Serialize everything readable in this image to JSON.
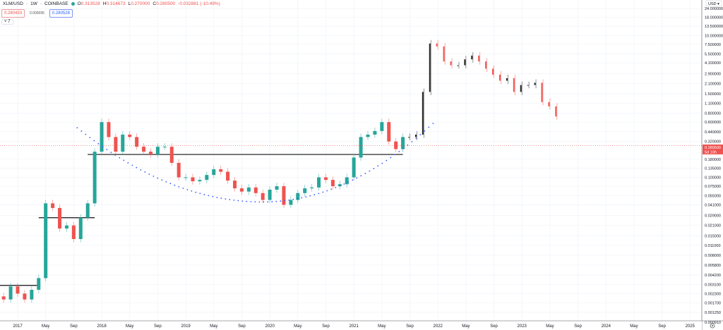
{
  "header": {
    "symbol": "XLM/USD",
    "interval": "1W",
    "exchange": "COINBASE",
    "open_label": "O",
    "open": "0.313528",
    "high_label": "H",
    "high": "0.314673",
    "low_label": "L",
    "low": "0.270000",
    "close_label": "C",
    "close": "0.280500",
    "change": "-0.032881 (-10.49%)",
    "sell_price": "0.280433",
    "spread": "0.000095",
    "buy_price": "0.280528",
    "indicators_toggle": "˅ 7"
  },
  "price_axis": {
    "currency": "USD ▾",
    "labels": [
      "24.000000",
      "18.000000",
      "13.500000",
      "10.000000",
      "7.500000",
      "5.500000",
      "4.100000",
      "2.900000",
      "2.100000",
      "1.500000",
      "1.100000",
      "0.800000",
      "0.600000",
      "0.440000",
      "0.320000",
      "0.180000",
      "0.135000",
      "0.100000",
      "0.075000",
      "0.055000",
      "0.041000",
      "0.029000",
      "0.021000",
      "0.015000",
      "0.011000",
      "0.008000",
      "0.005800",
      "0.004200",
      "0.003100",
      "0.002300",
      "0.001700",
      "0.001250",
      "0.000910"
    ],
    "current_price": "0.280500",
    "countdown": "5d 10h",
    "settings_icon": "gear-icon"
  },
  "time_axis": {
    "labels": [
      "2017",
      "May",
      "Sep",
      "2018",
      "May",
      "Sep",
      "2019",
      "May",
      "Sep",
      "2020",
      "May",
      "Sep",
      "2021",
      "May",
      "Sep",
      "2022",
      "May",
      "Sep",
      "2023",
      "May",
      "Sep",
      "2024",
      "May",
      "Sep",
      "2025"
    ]
  },
  "colors": {
    "up": "#26a69a",
    "down": "#ef5350",
    "projection_rise": "#222222",
    "projection_fall": "#ef5350",
    "arc": "#3d5afe",
    "level": "#111111"
  },
  "chart_data": {
    "type": "candlestick",
    "scale": "log",
    "ylim": [
      0.00091,
      24
    ],
    "start_month": "2016-10",
    "monthly_close": [
      0.0021,
      0.0019,
      0.0029,
      0.0023,
      0.0019,
      0.0026,
      0.0038,
      0.043,
      0.037,
      0.019,
      0.021,
      0.0135,
      0.027,
      0.043,
      0.23,
      0.6,
      0.37,
      0.23,
      0.4,
      0.37,
      0.27,
      0.23,
      0.21,
      0.27,
      0.27,
      0.16,
      0.1,
      0.1,
      0.088,
      0.092,
      0.108,
      0.13,
      0.12,
      0.09,
      0.07,
      0.063,
      0.072,
      0.06,
      0.048,
      0.067,
      0.075,
      0.041,
      0.048,
      0.06,
      0.07,
      0.072,
      0.1,
      0.092,
      0.075,
      0.08,
      0.1,
      0.19,
      0.37,
      0.4,
      0.45,
      0.6,
      0.32,
      0.25,
      0.37,
      0.37,
      0.4,
      1.6,
      7.7,
      7.0,
      4.3,
      3.8,
      3.8,
      4.6,
      5.2,
      4.3,
      3.4,
      2.8,
      2.3,
      2.5,
      1.6,
      2.0,
      2.0,
      2.15,
      1.15,
      1.0,
      0.72
    ],
    "projection_start": "2021-09",
    "levels": [
      {
        "price": 0.003,
        "from": "2016-10",
        "to": "2017-04"
      },
      {
        "price": 0.027,
        "from": "2017-04",
        "to": "2017-12"
      },
      {
        "price": 0.21,
        "from": "2017-11",
        "to": "2021-08"
      }
    ],
    "arc": {
      "start": {
        "date": "2017-09",
        "price": 0.5
      },
      "bottom": {
        "date": "2019-12",
        "price": 0.045
      },
      "end": {
        "date": "2021-12",
        "price": 0.6
      }
    }
  }
}
